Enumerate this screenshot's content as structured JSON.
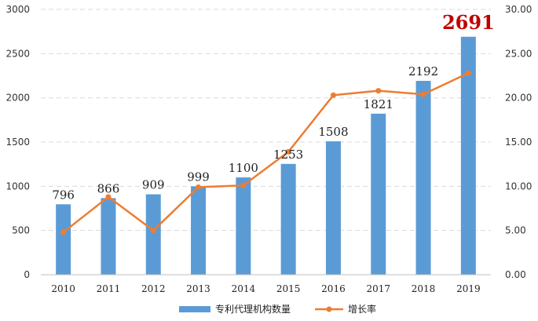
{
  "chart_data": {
    "type": "bar",
    "categories": [
      "2010",
      "2011",
      "2012",
      "2013",
      "2014",
      "2015",
      "2016",
      "2017",
      "2018",
      "2019"
    ],
    "series": [
      {
        "name": "专利代理机构数量",
        "kind": "bar",
        "axis": "left",
        "color": "#5b9bd5",
        "values": [
          796,
          866,
          909,
          999,
          1100,
          1253,
          1508,
          1821,
          2192,
          2691
        ]
      },
      {
        "name": "增长率",
        "kind": "line",
        "axis": "right",
        "color": "#ed7d31",
        "values": [
          4.8,
          8.8,
          5.0,
          9.9,
          10.1,
          13.9,
          20.3,
          20.8,
          20.4,
          22.8
        ]
      }
    ],
    "data_labels": [
      "796",
      "866",
      "909",
      "999",
      "1100",
      "1253",
      "1508",
      "1821",
      "2192",
      "2691"
    ],
    "highlight_color": "#c00000",
    "y_left": {
      "min": 0,
      "max": 3000,
      "ticks": [
        "0",
        "500",
        "1000",
        "1500",
        "2000",
        "2500",
        "3000"
      ]
    },
    "y_right": {
      "min": 0,
      "max": 30,
      "ticks": [
        "0.00",
        "5.00",
        "10.00",
        "15.00",
        "20.00",
        "25.00",
        "30.00"
      ]
    },
    "grid": true,
    "grid_style": "dashed",
    "legend_position": "bottom"
  }
}
